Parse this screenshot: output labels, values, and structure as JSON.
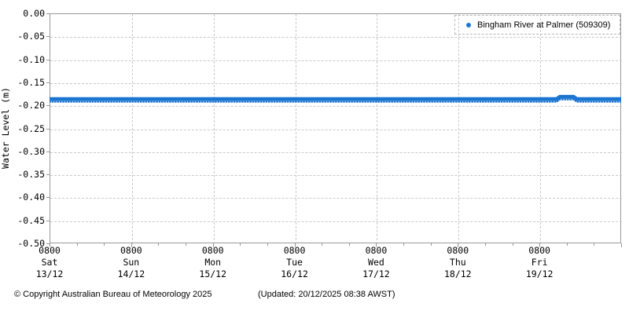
{
  "chart_data": {
    "type": "line",
    "title": "",
    "ylabel": "Water Level (m)",
    "ylim": [
      -0.5,
      0.0
    ],
    "ytick_step": 0.05,
    "ytick_labels": [
      "0.00",
      "-0.05",
      "-0.10",
      "-0.15",
      "-0.20",
      "-0.25",
      "-0.30",
      "-0.35",
      "-0.40",
      "-0.45",
      "-0.50"
    ],
    "x_range_hours": [
      0,
      168
    ],
    "x_minor_tick_hours": 8,
    "x_major_tick_hours": 24,
    "grid": "dashed",
    "legend_position": "top-right",
    "xticks": [
      {
        "time": "0800",
        "day": "Sat",
        "date": "13/12"
      },
      {
        "time": "0800",
        "day": "Sun",
        "date": "14/12"
      },
      {
        "time": "0800",
        "day": "Mon",
        "date": "15/12"
      },
      {
        "time": "0800",
        "day": "Tue",
        "date": "16/12"
      },
      {
        "time": "0800",
        "day": "Wed",
        "date": "17/12"
      },
      {
        "time": "0800",
        "day": "Thu",
        "date": "18/12"
      },
      {
        "time": "0800",
        "day": "Fri",
        "date": "19/12"
      }
    ],
    "series": [
      {
        "name": "Bingham River at Palmer (509309)",
        "color": "#1b75d1",
        "marker": "dot",
        "points_hours_vs_m": [
          [
            0,
            -0.19
          ],
          [
            24,
            -0.19
          ],
          [
            48,
            -0.19
          ],
          [
            72,
            -0.19
          ],
          [
            96,
            -0.19
          ],
          [
            120,
            -0.19
          ],
          [
            144,
            -0.19
          ],
          [
            149,
            -0.19
          ],
          [
            150,
            -0.185
          ],
          [
            154,
            -0.185
          ],
          [
            155,
            -0.19
          ],
          [
            168,
            -0.19
          ]
        ]
      }
    ],
    "colors": {
      "line": "#1b75d1",
      "grid": "#c9c9c9",
      "spine": "#999999",
      "background": "#ffffff",
      "text": "#000000"
    }
  },
  "footer": {
    "copyright": "© Copyright Australian Bureau of Meteorology 2025",
    "updated": "(Updated: 20/12/2025 08:38 AWST)"
  }
}
